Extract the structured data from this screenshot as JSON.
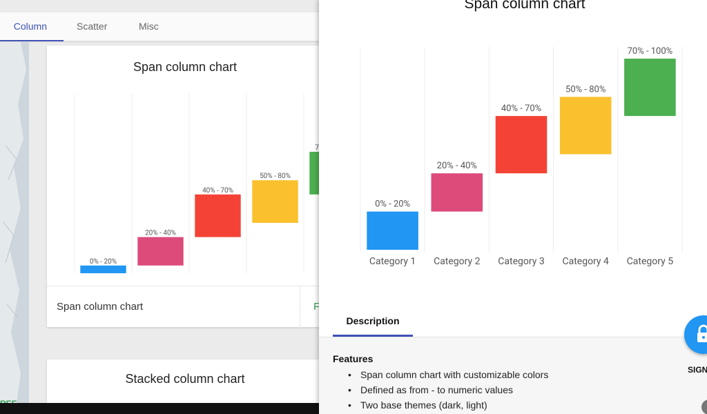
{
  "tabs": [
    {
      "label": "Column",
      "active": true
    },
    {
      "label": "Scatter",
      "active": false
    },
    {
      "label": "Misc",
      "active": false
    }
  ],
  "cards": {
    "span": {
      "title": "Span column chart",
      "footer_label": "Span column chart",
      "footer_action": "F"
    },
    "stacked": {
      "title": "Stacked column chart"
    }
  },
  "left_footer": {
    "free_label": "REE"
  },
  "preview": {
    "title": "Span column chart",
    "tab_description": "Description",
    "features_heading": "Features",
    "features": [
      "Span column chart with customizable colors",
      "Defined as from - to numeric values",
      "Two base themes (dark, light)"
    ],
    "signin_label": "SIGN"
  },
  "icons": {
    "lock": "lock-icon"
  },
  "chart_data": {
    "type": "bar",
    "title": "Span column chart",
    "categories": [
      "Category 1",
      "Category 2",
      "Category 3",
      "Category 4",
      "Category 5"
    ],
    "ranges": [
      [
        0,
        20
      ],
      [
        20,
        40
      ],
      [
        40,
        70
      ],
      [
        50,
        80
      ],
      [
        70,
        100
      ]
    ],
    "labels": [
      "0% - 20%",
      "20% - 40%",
      "40% - 70%",
      "50% - 80%",
      "70% - 100%"
    ],
    "colors": [
      "#2196f3",
      "#dd4b7a",
      "#f44336",
      "#fbc02d",
      "#4caf50"
    ],
    "ylim": [
      0,
      100
    ],
    "grid": "vertical"
  }
}
